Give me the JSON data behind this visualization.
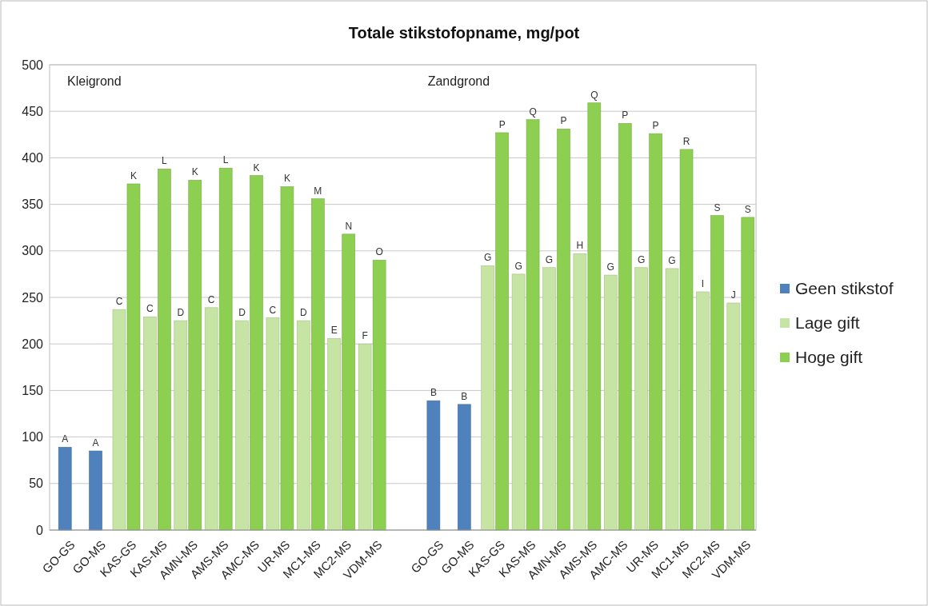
{
  "chart_data": {
    "type": "bar",
    "title": "Totale stikstofopname, mg/pot",
    "categories": [
      "GO-GS",
      "GO-MS",
      "KAS-GS",
      "KAS-MS",
      "AMN-MS",
      "AMS-MS",
      "AMC-MS",
      "UR-MS",
      "MC1-MS",
      "MC2-MS",
      "VDM-MS",
      null,
      "GO-GS",
      "GO-MS",
      "KAS-GS",
      "KAS-MS",
      "AMN-MS",
      "AMS-MS",
      "AMC-MS",
      "UR-MS",
      "MC1-MS",
      "MC2-MS",
      "VDM-MS"
    ],
    "series": [
      {
        "name": "Geen stikstof",
        "color": "#4f81bd",
        "values": [
          89,
          85,
          null,
          null,
          null,
          null,
          null,
          null,
          null,
          null,
          null,
          null,
          139,
          135,
          null,
          null,
          null,
          null,
          null,
          null,
          null,
          null,
          null
        ],
        "value_labels": [
          "A",
          "A",
          null,
          null,
          null,
          null,
          null,
          null,
          null,
          null,
          null,
          null,
          "B",
          "B",
          null,
          null,
          null,
          null,
          null,
          null,
          null,
          null,
          null
        ]
      },
      {
        "name": "Lage gift",
        "color": "#c6e4a4",
        "values": [
          null,
          null,
          237,
          229,
          225,
          239,
          225,
          228,
          225,
          206,
          200,
          null,
          null,
          null,
          284,
          275,
          282,
          297,
          274,
          282,
          281,
          256,
          244
        ],
        "value_labels": [
          null,
          null,
          "C",
          "C",
          "D",
          "C",
          "D",
          "C",
          "D",
          "E",
          "F",
          null,
          null,
          null,
          "G",
          "G",
          "G",
          "H",
          "G",
          "G",
          "G",
          "I",
          "J"
        ]
      },
      {
        "name": "Hoge gift",
        "color": "#8dcf50",
        "values": [
          null,
          null,
          372,
          388,
          376,
          389,
          381,
          369,
          356,
          318,
          290,
          null,
          null,
          null,
          427,
          441,
          431,
          459,
          437,
          426,
          409,
          338,
          336
        ],
        "value_labels": [
          null,
          null,
          "K",
          "L",
          "K",
          "L",
          "K",
          "K",
          "M",
          "N",
          "O",
          null,
          null,
          null,
          "P",
          "Q",
          "P",
          "Q",
          "P",
          "P",
          "R",
          "S",
          "S"
        ]
      }
    ],
    "ylim": [
      0,
      500
    ],
    "yticks": [
      0,
      50,
      100,
      150,
      200,
      250,
      300,
      350,
      400,
      450,
      500
    ],
    "grid": "y",
    "legend": "right",
    "annotations": [
      "Kleigrond",
      "Zandgrond"
    ]
  }
}
